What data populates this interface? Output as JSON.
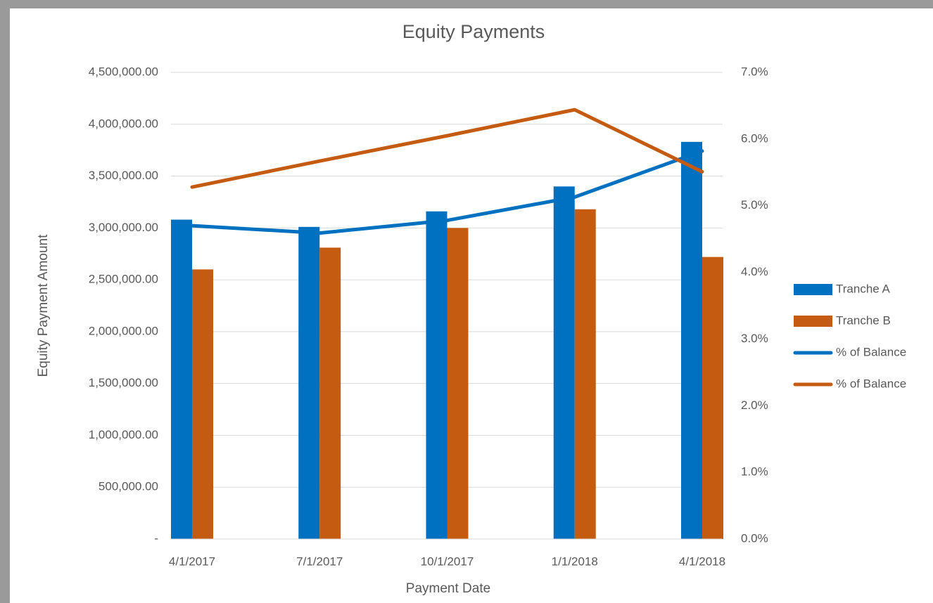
{
  "chart_data": {
    "type": "combo",
    "title": "Equity Payments",
    "x_label": "Payment Date",
    "y_label": "Equity Payment Amount",
    "categories": [
      "4/1/2017",
      "7/1/2017",
      "10/1/2017",
      "1/1/2018",
      "4/1/2018"
    ],
    "series": [
      {
        "name": "Tranche A",
        "type": "bar",
        "color": "#0070c0",
        "values": [
          3080000,
          3010000,
          3160000,
          3400000,
          3830000
        ]
      },
      {
        "name": "Tranche B",
        "type": "bar",
        "color": "#c55a11",
        "values": [
          2600000,
          2810000,
          3000000,
          3180000,
          2720000
        ]
      },
      {
        "name": "% of Balance",
        "type": "line",
        "axis": "y2",
        "color": "#0070c0",
        "values": [
          4.7,
          4.59,
          4.78,
          5.13,
          5.82
        ]
      },
      {
        "name": "% of Balance",
        "type": "line",
        "axis": "y2",
        "color": "#c55a11",
        "values": [
          5.28,
          5.67,
          6.05,
          6.44,
          5.51
        ]
      }
    ],
    "ylim": [
      0,
      4500000
    ],
    "yticks": [
      {
        "value": 0,
        "label": "-"
      },
      {
        "value": 500000,
        "label": "500,000.00"
      },
      {
        "value": 1000000,
        "label": "1,000,000.00"
      },
      {
        "value": 1500000,
        "label": "1,500,000.00"
      },
      {
        "value": 2000000,
        "label": "2,000,000.00"
      },
      {
        "value": 2500000,
        "label": "2,500,000.00"
      },
      {
        "value": 3000000,
        "label": "3,000,000.00"
      },
      {
        "value": 3500000,
        "label": "3,500,000.00"
      },
      {
        "value": 4000000,
        "label": "4,000,000.00"
      },
      {
        "value": 4500000,
        "label": "4,500,000.00"
      }
    ],
    "y2lim": [
      0,
      7
    ],
    "y2ticks": [
      {
        "value": 0,
        "label": "0.0%"
      },
      {
        "value": 1,
        "label": "1.0%"
      },
      {
        "value": 2,
        "label": "2.0%"
      },
      {
        "value": 3,
        "label": "3.0%"
      },
      {
        "value": 4,
        "label": "4.0%"
      },
      {
        "value": 5,
        "label": "5.0%"
      },
      {
        "value": 6,
        "label": "6.0%"
      },
      {
        "value": 7,
        "label": "7.0%"
      }
    ],
    "grid": true,
    "legend": "right"
  }
}
